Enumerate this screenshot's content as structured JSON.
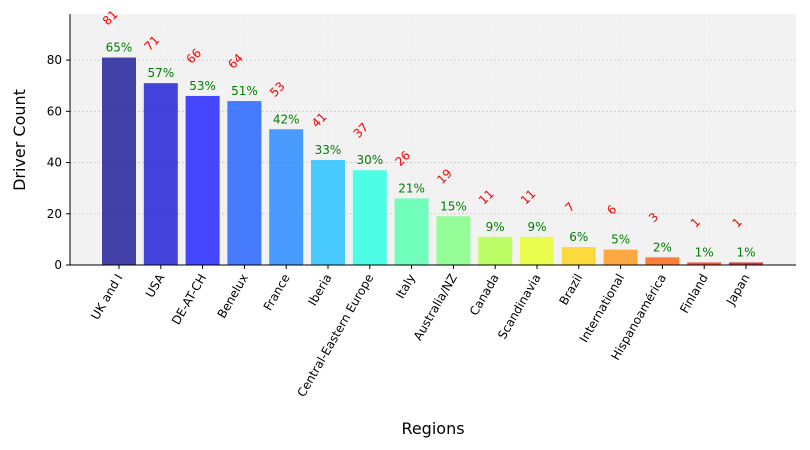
{
  "chart_data": {
    "type": "bar",
    "title": "",
    "xlabel": "Regions",
    "ylabel": "Driver Count",
    "ylim": [
      0,
      98
    ],
    "yticks": [
      0,
      20,
      40,
      60,
      80
    ],
    "grid": true,
    "categories": [
      "UK and I",
      "USA",
      "DE-AT-CH",
      "Benelux",
      "France",
      "Iberia",
      "Central-Eastern Europe",
      "Italy",
      "Australia/NZ",
      "Canada",
      "Scandinavia",
      "Brazil",
      "International",
      "Hispanoamérica",
      "Finland",
      "Japan"
    ],
    "values": [
      81,
      71,
      66,
      64,
      53,
      41,
      37,
      26,
      19,
      11,
      11,
      7,
      6,
      3,
      1,
      1
    ],
    "percent_labels": [
      "65%",
      "57%",
      "53%",
      "51%",
      "42%",
      "33%",
      "30%",
      "21%",
      "15%",
      "9%",
      "9%",
      "6%",
      "5%",
      "2%",
      "1%",
      "1%"
    ],
    "colors": [
      "#22229a",
      "#2424d8",
      "#2828ff",
      "#2866ff",
      "#2b8cff",
      "#2cc4ff",
      "#30ffe3",
      "#5affb3",
      "#85ff88",
      "#b4ff4e",
      "#e6ff30",
      "#ffd51e",
      "#ff9b24",
      "#ff6a1c",
      "#f23c1c",
      "#c81f1f"
    ],
    "count_label_color": "#ff0000",
    "percent_label_color": "#008000",
    "plot_background": "#f2f2f2"
  }
}
